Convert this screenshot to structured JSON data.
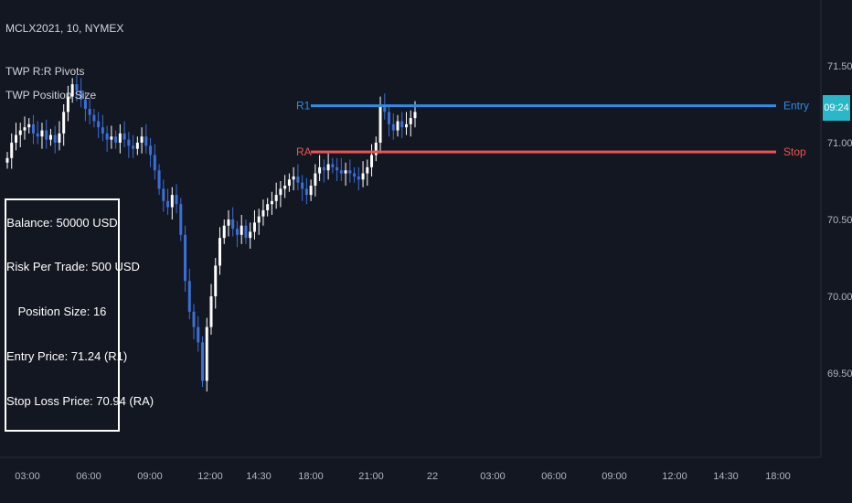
{
  "legend": {
    "symbol_line": "MCLX2021, 10, NYMEX",
    "indicator_1": "TWP R:R Pivots",
    "indicator_2": "TWP Position Size"
  },
  "info_box": {
    "balance": "Balance: 50000 USD",
    "risk": "Risk Per Trade: 500 USD",
    "position_size": "Position Size: 16",
    "entry_price": "Entry Price: 71.24 (R1)",
    "stop_loss": "Stop Loss Price: 70.94 (RA)"
  },
  "price_badge": "09:24",
  "colors": {
    "background": "#131722",
    "entry_line": "#2f8ce8",
    "stop_line": "#ef5350",
    "up_candle": "#ffffff",
    "down_candle": "#3a6fd8",
    "badge": "#2ab7c7",
    "axis_text": "#b2b5be"
  },
  "chart_data": {
    "type": "candlestick",
    "y_axis": {
      "ticks": [
        "71.50",
        "71.00",
        "70.50",
        "70.00",
        "69.50"
      ],
      "tick_values": [
        71.5,
        71.0,
        70.5,
        70.0,
        69.5
      ],
      "range": [
        69.3,
        71.75
      ]
    },
    "x_axis": {
      "ticks": [
        "03:00",
        "06:00",
        "09:00",
        "12:00",
        "14:30",
        "18:00",
        "21:00",
        "22",
        "03:00",
        "06:00",
        "09:00",
        "12:00",
        "14:30",
        "18:00"
      ]
    },
    "levels": [
      {
        "left_label": "R1",
        "right_label": "Entry",
        "value": 71.24,
        "color": "#2f8ce8"
      },
      {
        "left_label": "RA",
        "right_label": "Stop",
        "value": 70.94,
        "color": "#ef5350"
      }
    ],
    "series": [
      {
        "values": [
          70.9,
          71.0,
          71.05,
          71.08,
          71.1,
          71.12,
          71.06,
          71.04,
          71.08,
          71.02,
          71.05,
          71.0,
          71.06,
          71.2,
          71.3,
          71.38,
          71.34,
          71.28,
          71.22,
          71.18,
          71.14,
          71.1,
          71.06,
          71.02,
          71.04,
          71.0,
          71.06,
          71.02,
          70.98,
          70.96,
          71.0,
          71.04,
          70.98,
          70.92,
          70.82,
          70.7,
          70.62,
          70.58,
          70.66,
          70.6,
          70.4,
          70.1,
          69.9,
          69.8,
          69.7,
          69.45,
          69.8,
          70.0,
          70.2,
          70.38,
          70.46,
          70.5,
          70.44,
          70.4,
          70.46,
          70.38,
          70.42,
          70.48,
          70.52,
          70.56,
          70.6,
          70.62,
          70.66,
          70.7,
          70.72,
          70.76,
          70.78,
          70.74,
          70.7,
          70.66,
          70.72,
          70.8,
          70.84,
          70.82,
          70.86,
          70.84,
          70.82,
          70.8,
          70.82,
          70.8,
          70.78,
          70.76,
          70.8,
          70.84,
          70.92,
          71.0,
          71.24,
          71.2,
          71.12,
          71.08,
          71.14,
          71.1,
          71.12,
          71.16,
          71.2
        ]
      }
    ]
  }
}
